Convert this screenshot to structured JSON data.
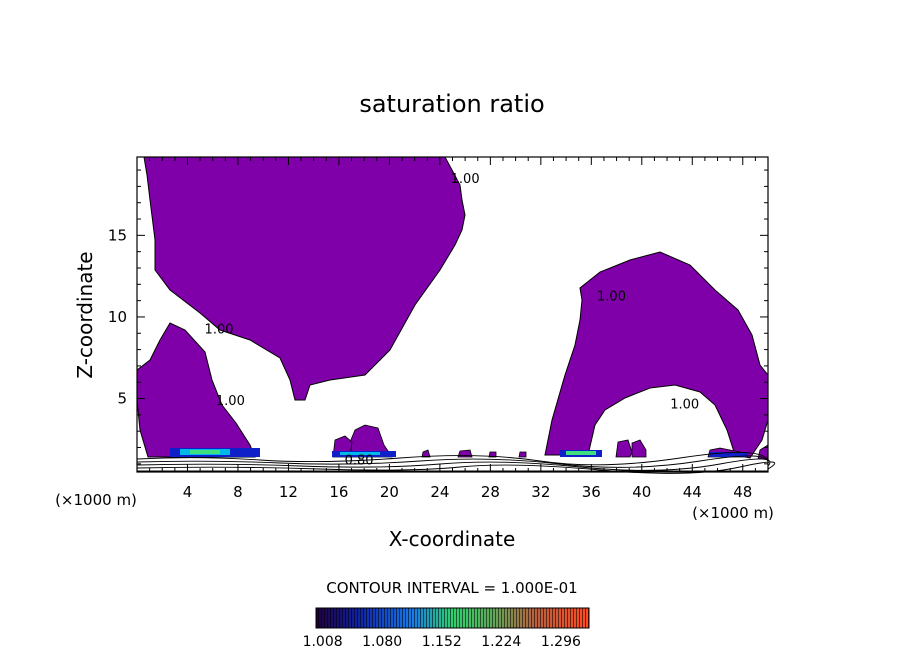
{
  "chart_data": {
    "type": "contour",
    "title": "saturation ratio",
    "xlabel": "X-coordinate",
    "ylabel": "Z-coordinate",
    "x_unit_left": "(×1000 m)",
    "x_unit_right": "(×1000 m)",
    "xlim": [
      0,
      50
    ],
    "ylim": [
      0.5,
      19.8
    ],
    "xticks": [
      4,
      8,
      12,
      16,
      20,
      24,
      28,
      32,
      36,
      40,
      44,
      48
    ],
    "xtick_labels": [
      "4",
      "8",
      "12",
      "16",
      "20",
      "24",
      "28",
      "32",
      "36",
      "40",
      "44",
      "48"
    ],
    "yticks": [
      5,
      10,
      15
    ],
    "ytick_labels": [
      "5",
      "10",
      "15"
    ],
    "contour_interval_text": "CONTOUR INTERVAL = 1.000E-01",
    "contour_labels": [
      {
        "text": "1.00",
        "x": 26.0,
        "z": 18.2
      },
      {
        "text": "1.00",
        "x": 6.5,
        "z": 9.0
      },
      {
        "text": "1.00",
        "x": 7.4,
        "z": 4.6
      },
      {
        "text": "1.00",
        "x": 37.6,
        "z": 11.0
      },
      {
        "text": "1.00",
        "x": 43.4,
        "z": 4.4
      },
      {
        "text": "0.80",
        "x": 17.6,
        "z": 0.95
      }
    ],
    "colorbar": {
      "ticks": [
        "1.008",
        "1.080",
        "1.152",
        "1.224",
        "1.296"
      ],
      "min": 1.0,
      "max": 1.33
    },
    "fill_color": "#7f00a8",
    "contour_color": "#000000"
  }
}
